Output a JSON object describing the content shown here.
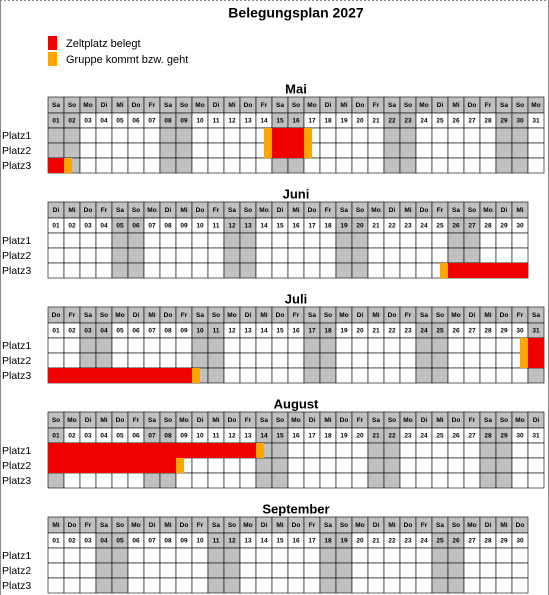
{
  "title": "Belegungsplan 2027",
  "legend": [
    {
      "label": "Zeltplatz belegt",
      "color": "#ee0000"
    },
    {
      "label": "Gruppe kommt bzw. geht",
      "color": "#ffa500"
    }
  ],
  "places": [
    "Platz1",
    "Platz2",
    "Platz3"
  ],
  "weekend": [
    "Sa",
    "So"
  ],
  "weekend_color": "#c0c0c0",
  "months": [
    {
      "name": "Mai",
      "weekdays": [
        "Sa",
        "So",
        "Mo",
        "Di",
        "Mi",
        "Do",
        "Fr",
        "Sa",
        "So",
        "Mo",
        "Di",
        "Mi",
        "Do",
        "Fr",
        "Sa",
        "So",
        "Mo",
        "Di",
        "Mi",
        "Do",
        "Fr",
        "Sa",
        "So",
        "Mo",
        "Di",
        "Mi",
        "Do",
        "Fr",
        "Sa",
        "So",
        "Mo"
      ],
      "days": [
        "01",
        "02",
        "03",
        "04",
        "05",
        "06",
        "07",
        "08",
        "09",
        "10",
        "11",
        "12",
        "13",
        "14",
        "15",
        "16",
        "17",
        "18",
        "19",
        "20",
        "21",
        "22",
        "23",
        "24",
        "25",
        "26",
        "27",
        "28",
        "29",
        "30",
        "31"
      ],
      "occupancy": [
        [
          null,
          null,
          null,
          null,
          null,
          null,
          null,
          null,
          null,
          null,
          null,
          null,
          null,
          1,
          0,
          0,
          1,
          null,
          null,
          null,
          null,
          null,
          null,
          null,
          null,
          null,
          null,
          null,
          null,
          null,
          null
        ],
        [
          null,
          null,
          null,
          null,
          null,
          null,
          null,
          null,
          null,
          null,
          null,
          null,
          null,
          1,
          0,
          0,
          1,
          null,
          null,
          null,
          null,
          null,
          null,
          null,
          null,
          null,
          null,
          null,
          null,
          null,
          null
        ],
        [
          0,
          1,
          null,
          null,
          null,
          null,
          null,
          null,
          null,
          null,
          null,
          null,
          null,
          null,
          null,
          null,
          null,
          null,
          null,
          null,
          null,
          null,
          null,
          null,
          null,
          null,
          null,
          null,
          null,
          null,
          null
        ]
      ]
    },
    {
      "name": "Juni",
      "weekdays": [
        "Di",
        "Mi",
        "Do",
        "Fr",
        "Sa",
        "So",
        "Mo",
        "Di",
        "Mi",
        "Do",
        "Fr",
        "Sa",
        "So",
        "Mo",
        "Di",
        "Mi",
        "Do",
        "Fr",
        "Sa",
        "So",
        "Mo",
        "Di",
        "Mi",
        "Do",
        "Fr",
        "Sa",
        "So",
        "Mo",
        "Di",
        "Mi"
      ],
      "days": [
        "01",
        "02",
        "03",
        "04",
        "05",
        "06",
        "07",
        "08",
        "09",
        "10",
        "11",
        "12",
        "13",
        "14",
        "15",
        "16",
        "17",
        "18",
        "19",
        "20",
        "21",
        "22",
        "23",
        "24",
        "25",
        "26",
        "27",
        "28",
        "29",
        "30"
      ],
      "occupancy": [
        [
          null,
          null,
          null,
          null,
          null,
          null,
          null,
          null,
          null,
          null,
          null,
          null,
          null,
          null,
          null,
          null,
          null,
          null,
          null,
          null,
          null,
          null,
          null,
          null,
          null,
          null,
          null,
          null,
          null,
          null
        ],
        [
          null,
          null,
          null,
          null,
          null,
          null,
          null,
          null,
          null,
          null,
          null,
          null,
          null,
          null,
          null,
          null,
          null,
          null,
          null,
          null,
          null,
          null,
          null,
          null,
          null,
          null,
          null,
          null,
          null,
          null
        ],
        [
          null,
          null,
          null,
          null,
          null,
          null,
          null,
          null,
          null,
          null,
          null,
          null,
          null,
          null,
          null,
          null,
          null,
          null,
          null,
          null,
          null,
          null,
          null,
          null,
          1,
          0,
          0,
          0,
          0,
          0
        ]
      ]
    },
    {
      "name": "Juli",
      "weekdays": [
        "Do",
        "Fr",
        "Sa",
        "So",
        "Mo",
        "Di",
        "Mi",
        "Do",
        "Fr",
        "Sa",
        "So",
        "Mo",
        "Di",
        "Mi",
        "Do",
        "Fr",
        "Sa",
        "So",
        "Mo",
        "Di",
        "Mi",
        "Do",
        "Fr",
        "Sa",
        "So",
        "Mo",
        "Di",
        "Mi",
        "Do",
        "Fr",
        "Sa"
      ],
      "days": [
        "01",
        "02",
        "03",
        "04",
        "05",
        "06",
        "07",
        "08",
        "09",
        "10",
        "11",
        "12",
        "13",
        "14",
        "15",
        "16",
        "17",
        "18",
        "19",
        "20",
        "21",
        "22",
        "23",
        "24",
        "25",
        "26",
        "27",
        "28",
        "29",
        "30",
        "31"
      ],
      "occupancy": [
        [
          null,
          null,
          null,
          null,
          null,
          null,
          null,
          null,
          null,
          null,
          null,
          null,
          null,
          null,
          null,
          null,
          null,
          null,
          null,
          null,
          null,
          null,
          null,
          null,
          null,
          null,
          null,
          null,
          null,
          1,
          0
        ],
        [
          null,
          null,
          null,
          null,
          null,
          null,
          null,
          null,
          null,
          null,
          null,
          null,
          null,
          null,
          null,
          null,
          null,
          null,
          null,
          null,
          null,
          null,
          null,
          null,
          null,
          null,
          null,
          null,
          null,
          1,
          0
        ],
        [
          0,
          0,
          0,
          0,
          0,
          0,
          0,
          0,
          0,
          1,
          null,
          null,
          null,
          null,
          null,
          null,
          null,
          null,
          null,
          null,
          null,
          null,
          null,
          null,
          null,
          null,
          null,
          null,
          null,
          null,
          null
        ]
      ]
    },
    {
      "name": "August",
      "weekdays": [
        "So",
        "Mo",
        "Di",
        "Mi",
        "Do",
        "Fr",
        "Sa",
        "So",
        "Mo",
        "Di",
        "Mi",
        "Do",
        "Fr",
        "Sa",
        "So",
        "Mo",
        "Di",
        "Mi",
        "Do",
        "Fr",
        "Sa",
        "So",
        "Mo",
        "Di",
        "Mi",
        "Do",
        "Fr",
        "Sa",
        "So",
        "Mo",
        "Di"
      ],
      "days": [
        "01",
        "02",
        "03",
        "04",
        "05",
        "06",
        "07",
        "08",
        "09",
        "10",
        "11",
        "12",
        "13",
        "14",
        "15",
        "16",
        "17",
        "18",
        "19",
        "20",
        "21",
        "22",
        "23",
        "24",
        "25",
        "26",
        "27",
        "28",
        "29",
        "30",
        "31"
      ],
      "occupancy": [
        [
          0,
          0,
          0,
          0,
          0,
          0,
          0,
          0,
          0,
          0,
          0,
          0,
          0,
          1,
          null,
          null,
          null,
          null,
          null,
          null,
          null,
          null,
          null,
          null,
          null,
          null,
          null,
          null,
          null,
          null,
          null
        ],
        [
          0,
          0,
          0,
          0,
          0,
          0,
          0,
          0,
          1,
          null,
          null,
          null,
          null,
          null,
          null,
          null,
          null,
          null,
          null,
          null,
          null,
          null,
          null,
          null,
          null,
          null,
          null,
          null,
          null,
          null,
          null
        ],
        [
          null,
          null,
          null,
          null,
          null,
          null,
          null,
          null,
          null,
          null,
          null,
          null,
          null,
          null,
          null,
          null,
          null,
          null,
          null,
          null,
          null,
          null,
          null,
          null,
          null,
          null,
          null,
          null,
          null,
          null,
          null
        ]
      ]
    },
    {
      "name": "September",
      "weekdays": [
        "Mi",
        "Do",
        "Fr",
        "Sa",
        "So",
        "Mo",
        "Di",
        "Mi",
        "Do",
        "Fr",
        "Sa",
        "So",
        "Mo",
        "Di",
        "Mi",
        "Do",
        "Fr",
        "Sa",
        "So",
        "Mo",
        "Di",
        "Mi",
        "Do",
        "Fr",
        "Sa",
        "So",
        "Mo",
        "Di",
        "Mi",
        "Do"
      ],
      "days": [
        "01",
        "02",
        "03",
        "04",
        "05",
        "06",
        "07",
        "08",
        "09",
        "10",
        "11",
        "12",
        "13",
        "14",
        "15",
        "16",
        "17",
        "18",
        "19",
        "20",
        "21",
        "22",
        "23",
        "24",
        "25",
        "26",
        "27",
        "28",
        "29",
        "30"
      ],
      "occupancy": [
        [
          null,
          null,
          null,
          null,
          null,
          null,
          null,
          null,
          null,
          null,
          null,
          null,
          null,
          null,
          null,
          null,
          null,
          null,
          null,
          null,
          null,
          null,
          null,
          null,
          null,
          null,
          null,
          null,
          null,
          null
        ],
        [
          null,
          null,
          null,
          null,
          null,
          null,
          null,
          null,
          null,
          null,
          null,
          null,
          null,
          null,
          null,
          null,
          null,
          null,
          null,
          null,
          null,
          null,
          null,
          null,
          null,
          null,
          null,
          null,
          null,
          null
        ],
        [
          null,
          null,
          null,
          null,
          null,
          null,
          null,
          null,
          null,
          null,
          null,
          null,
          null,
          null,
          null,
          null,
          null,
          null,
          null,
          null,
          null,
          null,
          null,
          null,
          null,
          null,
          null,
          null,
          null,
          null
        ]
      ]
    }
  ]
}
